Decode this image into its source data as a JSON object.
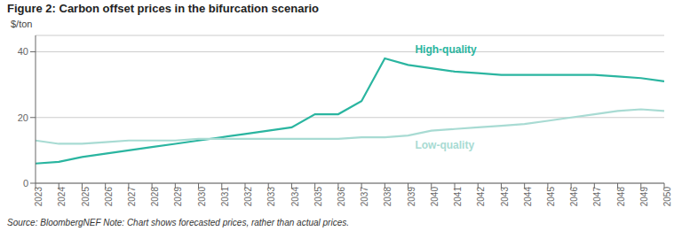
{
  "chart_data": {
    "type": "line",
    "title": "Figure 2: Carbon offset prices in the bifurcation scenario",
    "ylabel": "$/ton",
    "source": "Source: BloombergNEF   Note: Chart shows forecasted prices, rather than actual prices.",
    "x": [
      2023,
      2024,
      2025,
      2026,
      2027,
      2028,
      2029,
      2030,
      2031,
      2032,
      2033,
      2034,
      2035,
      2036,
      2037,
      2038,
      2039,
      2040,
      2041,
      2042,
      2043,
      2044,
      2045,
      2046,
      2047,
      2048,
      2049,
      2050
    ],
    "series": [
      {
        "color": "#2ab5a0",
        "values": [
          6,
          6.5,
          8,
          9,
          10,
          11,
          12,
          13,
          14,
          15,
          16,
          17,
          21,
          21,
          25,
          38,
          36,
          35,
          34,
          33.5,
          33,
          33,
          33,
          33,
          33,
          32.5,
          32,
          31
        ]
      },
      {
        "color": "#a8dbd3",
        "values": [
          13,
          12,
          12,
          12.5,
          13,
          13,
          13,
          13.5,
          13.5,
          13.5,
          13.5,
          13.5,
          13.5,
          13.5,
          14,
          14,
          14.5,
          16,
          16.5,
          17,
          17.5,
          18,
          19,
          20,
          21,
          22,
          22.5,
          22
        ]
      }
    ],
    "annotations": [
      {
        "text": "High-quality",
        "x": 2039.3,
        "y": 39.5,
        "color": "#2ab5a0"
      },
      {
        "text": "Low-quality",
        "x": 2039.3,
        "y": 13.0,
        "color": "#a8dbd3"
      }
    ],
    "xlim": [
      2023,
      2050
    ],
    "xticks": [
      2023,
      2024,
      2025,
      2026,
      2027,
      2028,
      2029,
      2030,
      2031,
      2032,
      2033,
      2034,
      2035,
      2036,
      2037,
      2038,
      2039,
      2040,
      2041,
      2042,
      2043,
      2044,
      2045,
      2046,
      2047,
      2048,
      2049,
      2050
    ],
    "ylim": [
      0,
      45
    ],
    "yticks": [
      0,
      20,
      40
    ],
    "grid": true
  }
}
